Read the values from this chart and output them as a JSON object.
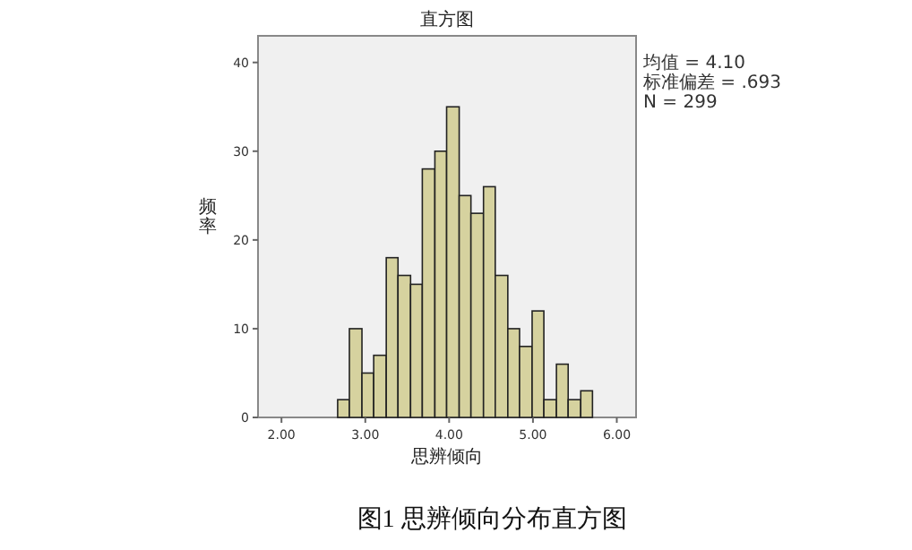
{
  "chart_data": {
    "type": "histogram",
    "title": "直方图",
    "xlabel": "思辨倾向",
    "ylabel": "频率",
    "bins": [
      2.67,
      2.81,
      2.96,
      3.1,
      3.25,
      3.39,
      3.54,
      3.68,
      3.83,
      3.97,
      4.12,
      4.26,
      4.41,
      4.55,
      4.7,
      4.84,
      4.99,
      5.13,
      5.28,
      5.42,
      5.57,
      5.71
    ],
    "values": [
      2,
      10,
      5,
      7,
      18,
      16,
      15,
      28,
      30,
      35,
      25,
      23,
      26,
      16,
      10,
      8,
      12,
      2,
      6,
      2,
      3
    ],
    "color": "#d6d29f",
    "xlim": [
      1.72,
      6.23
    ],
    "xticks": [
      {
        "value": 2,
        "label": "2.00"
      },
      {
        "value": 3,
        "label": "3.00"
      },
      {
        "value": 4,
        "label": "4.00"
      },
      {
        "value": 5,
        "label": "5.00"
      },
      {
        "value": 6,
        "label": "6.00"
      }
    ],
    "ylim": [
      0,
      43
    ],
    "yticks": [
      0,
      10,
      20,
      30,
      40
    ],
    "grid": false,
    "annotations": [
      "均值 = 4.10",
      "标准偏差 = .693",
      "N = 299",
      "图1 思辨倾向分布直方图"
    ]
  }
}
